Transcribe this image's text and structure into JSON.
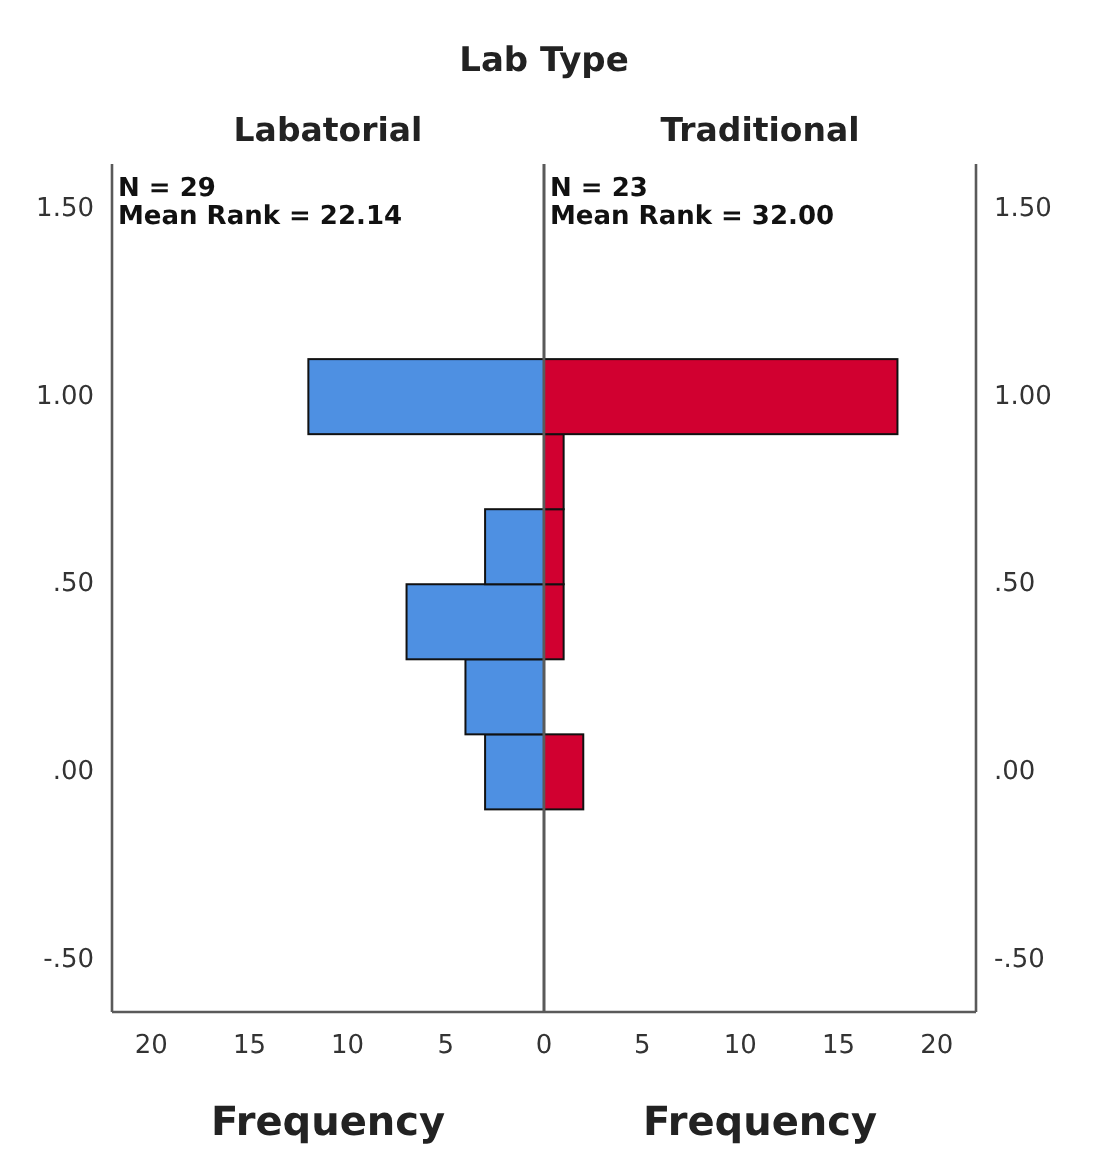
{
  "chart_data": [
    {
      "type": "histogram",
      "title": "Lab Type",
      "subtitle": "Labatorial",
      "orientation": "horizontal",
      "bins": [
        -0.1,
        0.1,
        0.3,
        0.5,
        0.7,
        0.9,
        1.1
      ],
      "values": [
        3,
        4,
        7,
        3,
        0,
        12
      ],
      "color": "#4e90e2",
      "xlim": [
        22,
        0
      ],
      "xticks": [
        20,
        15,
        10,
        5
      ],
      "ylim": [
        -0.64,
        1.62
      ],
      "yticks": [
        {
          "value": -0.5,
          "label": "-.50"
        },
        {
          "value": 0,
          "label": ".00"
        },
        {
          "value": 0.5,
          "label": ".50"
        },
        {
          "value": 1,
          "label": "1.00"
        },
        {
          "value": 1.5,
          "label": "1.50"
        }
      ],
      "xlabel": "Frequency",
      "annotations": [
        "N = 29",
        "Mean Rank = 22.14"
      ]
    },
    {
      "type": "histogram",
      "subtitle": "Traditional",
      "orientation": "horizontal",
      "bins": [
        -0.1,
        0.1,
        0.3,
        0.5,
        0.7,
        0.9,
        1.1
      ],
      "values": [
        2,
        0,
        1,
        1,
        1,
        18
      ],
      "color": "#d10030",
      "xlim": [
        0,
        22
      ],
      "xticks": [
        0,
        5,
        10,
        15,
        20
      ],
      "ylim": [
        -0.64,
        1.62
      ],
      "yticks": [
        {
          "value": -0.5,
          "label": "-.50"
        },
        {
          "value": 0,
          "label": ".00"
        },
        {
          "value": 0.5,
          "label": ".50"
        },
        {
          "value": 1,
          "label": "1.00"
        },
        {
          "value": 1.5,
          "label": "1.50"
        }
      ],
      "xlabel": "Frequency",
      "annotations": [
        "N = 23",
        "Mean Rank = 32.00"
      ]
    }
  ]
}
